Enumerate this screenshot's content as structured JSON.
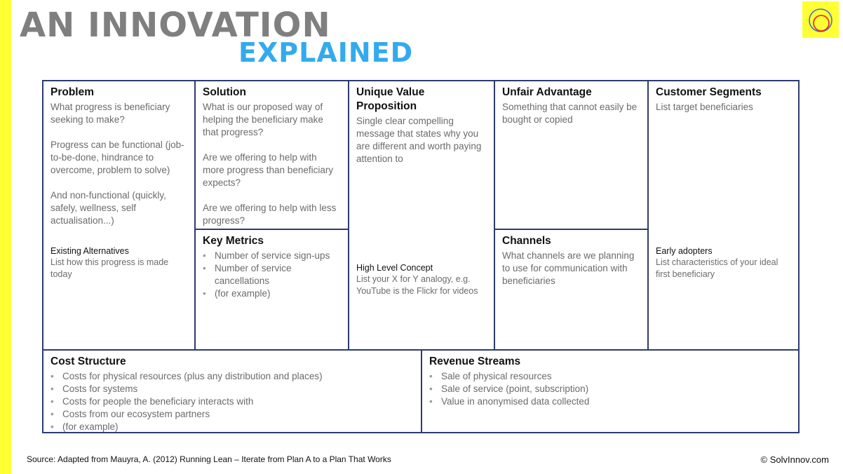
{
  "title": {
    "line1": "AN INNOVATION",
    "line2": "EXPLAINED"
  },
  "colors": {
    "accent_yellow": "#ffff33",
    "title_gray": "#7f7f7f",
    "title_blue": "#33aaee",
    "border": "#2e3b6e"
  },
  "logo": {
    "icon": "concentric-circles-logo-icon"
  },
  "problem": {
    "title": "Problem",
    "paragraphs": [
      "What progress is beneficiary seeking to make?",
      "Progress can be functional (job-to-be-done, hindrance to overcome, problem to solve)",
      "And non-functional (quickly, safely, wellness, self actualisation...)"
    ],
    "sub_title": "Existing Alternatives",
    "sub_text": "List how this progress is made today"
  },
  "solution": {
    "title": "Solution",
    "paragraphs": [
      "What is our proposed way of helping the beneficiary make that progress?",
      "Are we offering to help with more progress than beneficiary expects?",
      "Are we offering to help with less progress?"
    ]
  },
  "key_metrics": {
    "title": "Key Metrics",
    "items": [
      "Number of service sign-ups",
      "Number of service cancellations",
      "(for example)"
    ]
  },
  "uvp": {
    "title": "Unique Value Proposition",
    "paragraphs": [
      "Single clear compelling message that states why you are different and worth paying attention to"
    ],
    "sub_title": "High Level Concept",
    "sub_text": "List your X for Y analogy, e.g. YouTube is the Flickr for videos"
  },
  "unfair_advantage": {
    "title": "Unfair Advantage",
    "paragraphs": [
      "Something that cannot easily be bought or copied"
    ]
  },
  "channels": {
    "title": "Channels",
    "paragraphs": [
      "What channels are we planning to use for communication with beneficiaries"
    ]
  },
  "customer_segments": {
    "title": "Customer Segments",
    "paragraphs": [
      "List target beneficiaries"
    ],
    "sub_title": "Early adopters",
    "sub_text": "List characteristics of your ideal first beneficiary"
  },
  "cost_structure": {
    "title": "Cost Structure",
    "items": [
      "Costs for physical resources (plus any distribution and places)",
      "Costs for systems",
      "Costs for people the beneficiary interacts with",
      "Costs from our ecosystem partners",
      "(for example)"
    ]
  },
  "revenue_streams": {
    "title": "Revenue Streams",
    "items": [
      "Sale of physical resources",
      "Sale of service (point, subscription)",
      "Value in anonymised data collected"
    ]
  },
  "footer": {
    "source": "Source: Adapted from Mauyra, A. (2012) Running Lean – Iterate from Plan A to a Plan That Works",
    "copyright": "© SolvInnov.com"
  }
}
